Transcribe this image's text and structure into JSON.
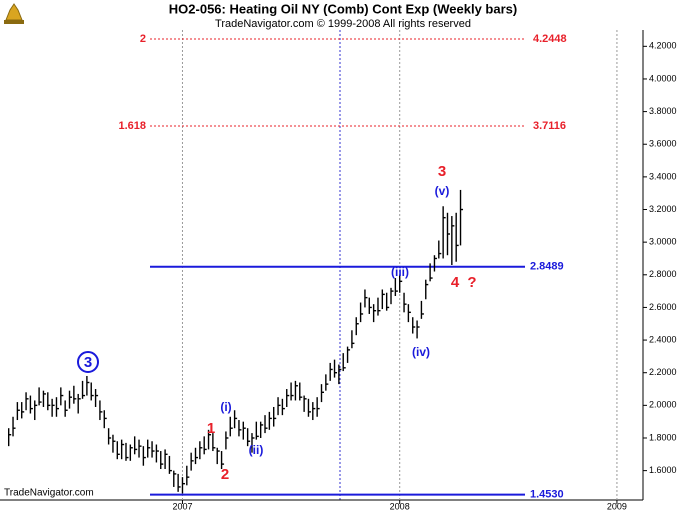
{
  "chart_data": {
    "type": "hlc",
    "title": "HO2-056:  Heating Oil NY (Comb) Cont Exp  (Weekly bars)",
    "subtitle": "TradeNavigator.com © 1999-2008 All rights reserved",
    "watermark": "TradeNavigator.com",
    "color": "#000000",
    "x": [
      2006.2,
      2006.22,
      2006.24,
      2006.26,
      2006.28,
      2006.3,
      2006.32,
      2006.34,
      2006.36,
      2006.38,
      2006.4,
      2006.42,
      2006.44,
      2006.46,
      2006.48,
      2006.5,
      2006.52,
      2006.54,
      2006.56,
      2006.58,
      2006.6,
      2006.62,
      2006.64,
      2006.66,
      2006.68,
      2006.7,
      2006.72,
      2006.74,
      2006.76,
      2006.78,
      2006.8,
      2006.82,
      2006.84,
      2006.86,
      2006.88,
      2006.9,
      2006.92,
      2006.94,
      2006.96,
      2006.98,
      2007.0,
      2007.02,
      2007.04,
      2007.06,
      2007.08,
      2007.1,
      2007.12,
      2007.14,
      2007.16,
      2007.18,
      2007.2,
      2007.22,
      2007.24,
      2007.26,
      2007.28,
      2007.3,
      2007.32,
      2007.34,
      2007.36,
      2007.38,
      2007.4,
      2007.42,
      2007.44,
      2007.46,
      2007.48,
      2007.5,
      2007.52,
      2007.54,
      2007.56,
      2007.58,
      2007.6,
      2007.62,
      2007.64,
      2007.66,
      2007.68,
      2007.7,
      2007.72,
      2007.74,
      2007.76,
      2007.78,
      2007.8,
      2007.82,
      2007.84,
      2007.86,
      2007.88,
      2007.9,
      2007.92,
      2007.94,
      2007.96,
      2007.98,
      2008.0,
      2008.02,
      2008.04,
      2008.06,
      2008.08,
      2008.1,
      2008.12,
      2008.14,
      2008.16,
      2008.18,
      2008.2,
      2008.22,
      2008.24,
      2008.26,
      2008.28
    ],
    "high": [
      1.86,
      1.93,
      2.02,
      2.02,
      2.08,
      2.06,
      2.03,
      2.11,
      2.09,
      2.08,
      2.04,
      2.05,
      2.11,
      2.03,
      2.09,
      2.12,
      2.07,
      2.15,
      2.18,
      2.14,
      2.1,
      2.03,
      1.97,
      1.86,
      1.82,
      1.78,
      1.79,
      1.77,
      1.76,
      1.81,
      1.79,
      1.75,
      1.79,
      1.78,
      1.76,
      1.72,
      1.73,
      1.69,
      1.6,
      1.58,
      1.56,
      1.63,
      1.71,
      1.74,
      1.78,
      1.81,
      1.85,
      1.83,
      1.74,
      1.72,
      1.84,
      1.93,
      1.97,
      1.91,
      1.9,
      1.86,
      1.83,
      1.9,
      1.9,
      1.94,
      1.96,
      1.99,
      2.05,
      2.04,
      2.1,
      2.14,
      2.15,
      2.14,
      2.06,
      2.04,
      2.02,
      2.05,
      2.13,
      2.19,
      2.26,
      2.28,
      2.25,
      2.32,
      2.36,
      2.46,
      2.54,
      2.63,
      2.71,
      2.66,
      2.62,
      2.66,
      2.71,
      2.69,
      2.72,
      2.78,
      2.8,
      2.69,
      2.62,
      2.54,
      2.52,
      2.64,
      2.77,
      2.87,
      2.92,
      3.01,
      3.22,
      3.18,
      3.16,
      3.18,
      3.32
    ],
    "low": [
      1.75,
      1.81,
      1.91,
      1.92,
      1.97,
      1.95,
      1.91,
      2.0,
      1.99,
      1.97,
      1.93,
      1.93,
      2.0,
      1.93,
      1.98,
      2.01,
      1.95,
      2.04,
      2.06,
      2.03,
      1.99,
      1.91,
      1.86,
      1.76,
      1.71,
      1.67,
      1.67,
      1.66,
      1.66,
      1.7,
      1.68,
      1.63,
      1.68,
      1.68,
      1.65,
      1.61,
      1.61,
      1.58,
      1.5,
      1.47,
      1.46,
      1.51,
      1.6,
      1.64,
      1.67,
      1.7,
      1.73,
      1.72,
      1.64,
      1.61,
      1.73,
      1.81,
      1.86,
      1.81,
      1.79,
      1.75,
      1.71,
      1.79,
      1.8,
      1.83,
      1.85,
      1.87,
      1.94,
      1.94,
      1.99,
      2.03,
      2.03,
      2.03,
      1.96,
      1.93,
      1.91,
      1.93,
      2.02,
      2.09,
      2.15,
      2.17,
      2.13,
      2.21,
      2.26,
      2.35,
      2.43,
      2.51,
      2.6,
      2.56,
      2.51,
      2.55,
      2.59,
      2.58,
      2.62,
      2.67,
      2.69,
      2.57,
      2.51,
      2.44,
      2.41,
      2.53,
      2.65,
      2.76,
      2.82,
      2.9,
      2.9,
      2.92,
      2.86,
      2.88,
      2.98
    ],
    "close": [
      1.82,
      1.86,
      1.97,
      1.96,
      2.04,
      1.98,
      2.0,
      2.02,
      2.07,
      2.0,
      2.0,
      1.98,
      2.06,
      1.97,
      2.05,
      2.04,
      2.04,
      2.06,
      2.14,
      2.06,
      2.06,
      1.96,
      1.92,
      1.8,
      1.78,
      1.7,
      1.76,
      1.68,
      1.74,
      1.73,
      1.75,
      1.68,
      1.74,
      1.72,
      1.72,
      1.64,
      1.7,
      1.6,
      1.58,
      1.5,
      1.52,
      1.56,
      1.66,
      1.68,
      1.74,
      1.73,
      1.82,
      1.74,
      1.72,
      1.64,
      1.8,
      1.86,
      1.92,
      1.85,
      1.86,
      1.78,
      1.8,
      1.81,
      1.88,
      1.86,
      1.92,
      1.92,
      2.0,
      1.98,
      2.06,
      2.06,
      2.12,
      2.05,
      2.04,
      1.96,
      1.98,
      1.98,
      2.08,
      2.13,
      2.22,
      2.2,
      2.22,
      2.23,
      2.34,
      2.38,
      2.5,
      2.56,
      2.66,
      2.6,
      2.58,
      2.58,
      2.68,
      2.6,
      2.7,
      2.7,
      2.76,
      2.62,
      2.57,
      2.48,
      2.48,
      2.56,
      2.74,
      2.78,
      2.9,
      2.93,
      3.15,
      3.05,
      3.1,
      2.98,
      3.2
    ],
    "xlim": [
      2006.16,
      2009.12
    ],
    "xticks": [
      2007,
      2008,
      2009
    ],
    "ylim": [
      1.42,
      4.3
    ],
    "yticks": [
      {
        "value": 1.6,
        "label": "1.6000"
      },
      {
        "value": 1.8,
        "label": "1.8000"
      },
      {
        "value": 2.0,
        "label": "2.0000"
      },
      {
        "value": 2.2,
        "label": "2.2000"
      },
      {
        "value": 2.4,
        "label": "2.4000"
      },
      {
        "value": 2.6,
        "label": "2.6000"
      },
      {
        "value": 2.8,
        "label": "2.8000"
      },
      {
        "value": 3.0,
        "label": "3.0000"
      },
      {
        "value": 3.2,
        "label": "3.2000"
      },
      {
        "value": 3.4,
        "label": "3.4000"
      },
      {
        "value": 3.6,
        "label": "3.6000"
      },
      {
        "value": 3.8,
        "label": "3.8000"
      },
      {
        "value": 4.0,
        "label": "4.0000"
      },
      {
        "value": 4.2,
        "label": "4.2000"
      }
    ],
    "fib_levels": [
      {
        "ratio": 2,
        "value": 4.2448
      },
      {
        "ratio": 1.618,
        "value": 3.7116
      }
    ],
    "support_lines": [
      {
        "value": 2.8489
      },
      {
        "value": 1.453,
        "value_label": "1.4530"
      }
    ],
    "annotations": [
      {
        "text": "3",
        "color": "#1a1adb"
      },
      {
        "text": "1",
        "color": "#e8202a"
      },
      {
        "text": "2",
        "color": "#e8202a"
      },
      {
        "text": "(i)",
        "color": "#1a1adb"
      },
      {
        "text": "(ii)",
        "color": "#1a1adb"
      },
      {
        "text": "(iii)",
        "color": "#1a1adb"
      },
      {
        "text": "(iv)",
        "color": "#1a1adb"
      },
      {
        "text": "(v)",
        "color": "#1a1adb"
      },
      {
        "text": "3",
        "color": "#e8202a"
      },
      {
        "text": "4",
        "color": "#e8202a"
      },
      {
        "text": "?",
        "color": "#e8202a"
      }
    ]
  }
}
